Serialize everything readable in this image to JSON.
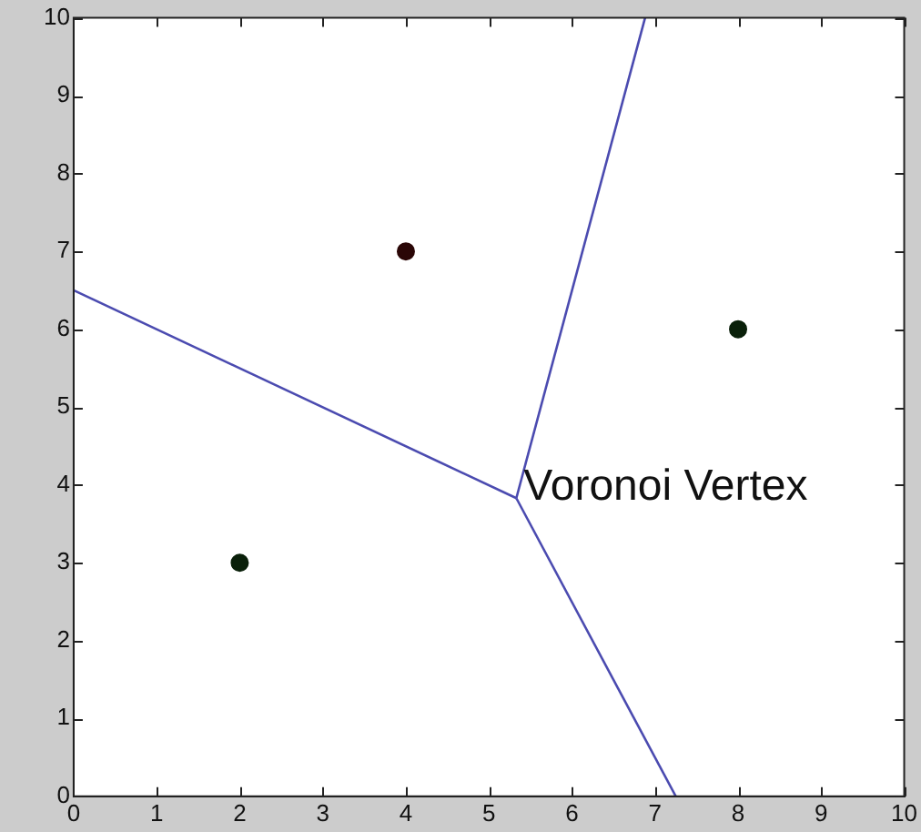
{
  "chart_data": {
    "type": "scatter",
    "xlim": [
      0,
      10
    ],
    "ylim": [
      0,
      10
    ],
    "xticks": [
      0,
      1,
      2,
      3,
      4,
      5,
      6,
      7,
      8,
      9,
      10
    ],
    "yticks": [
      0,
      1,
      2,
      3,
      4,
      5,
      6,
      7,
      8,
      9,
      10
    ],
    "grid": false,
    "legend": false,
    "series": [
      {
        "type": "scatter",
        "marker": "circle",
        "x": [
          2,
          4,
          8
        ],
        "values": [
          3,
          7,
          6
        ],
        "colors": [
          "#0a200a",
          "#2a0606",
          "#0a200a"
        ]
      },
      {
        "type": "line",
        "marker": "none",
        "color": "#4b4bb0",
        "x": [
          0,
          5.33
        ],
        "values": [
          6.5,
          3.83
        ]
      },
      {
        "type": "line",
        "marker": "none",
        "color": "#4b4bb0",
        "x": [
          5.33,
          6.88
        ],
        "values": [
          3.83,
          10
        ]
      },
      {
        "type": "line",
        "marker": "none",
        "color": "#4b4bb0",
        "x": [
          5.33,
          7.25
        ],
        "values": [
          3.83,
          0
        ]
      }
    ],
    "annotations": [
      {
        "text": "Voronoi Vertex",
        "x": 5.33,
        "y": 3.83
      }
    ]
  }
}
